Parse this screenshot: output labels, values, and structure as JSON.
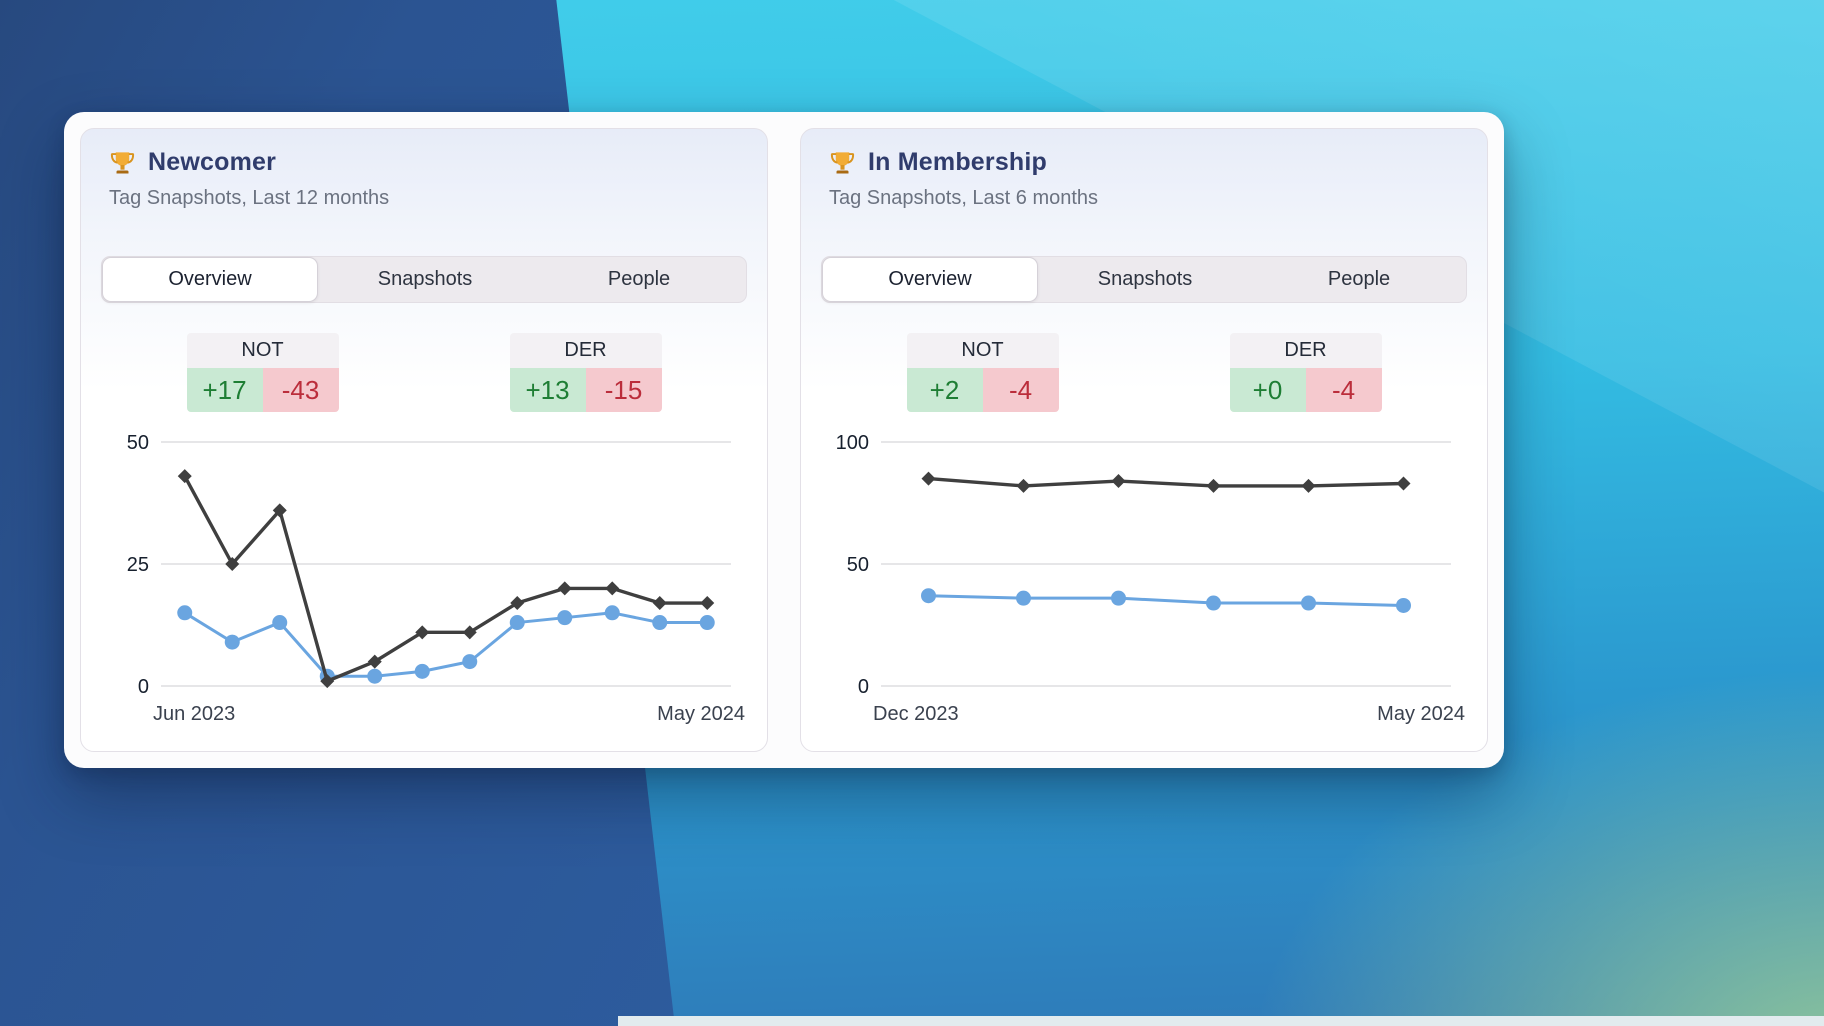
{
  "colors": {
    "title": "#303c6c",
    "positive_text": "#1e7e34",
    "positive_bg": "#c9e9d3",
    "negative_text": "#bb2d3b",
    "negative_bg": "#f5c9ce",
    "dark_series": "#3f3f3f",
    "blue_series": "#6aa5e0"
  },
  "cards": [
    {
      "icon": "trophy-icon",
      "title": "Newcomer",
      "subtitle": "Tag Snapshots, Last 12 months",
      "tabs": [
        "Overview",
        "Snapshots",
        "People"
      ],
      "active_tab": "Overview",
      "stats": [
        {
          "label": "NOT",
          "added": "+17",
          "removed": "-43"
        },
        {
          "label": "DER",
          "added": "+13",
          "removed": "-15"
        }
      ]
    },
    {
      "icon": "trophy-icon",
      "title": "In Membership",
      "subtitle": "Tag Snapshots, Last 6 months",
      "tabs": [
        "Overview",
        "Snapshots",
        "People"
      ],
      "active_tab": "Overview",
      "stats": [
        {
          "label": "NOT",
          "added": "+2",
          "removed": "-4"
        },
        {
          "label": "DER",
          "added": "+0",
          "removed": "-4"
        }
      ]
    }
  ],
  "chart_data": [
    {
      "type": "line",
      "grid": true,
      "x_axis": {
        "start_label": "Jun 2023",
        "end_label": "May 2024",
        "points": 12
      },
      "y_ticks": [
        0,
        25,
        50
      ],
      "ylim": [
        0,
        50
      ],
      "series": [
        {
          "id": "blue-line",
          "color": "#6aa5e0",
          "marker": "circle",
          "values": [
            15,
            9,
            13,
            2,
            2,
            3,
            5,
            13,
            14,
            15,
            13,
            13
          ]
        },
        {
          "id": "dark-line",
          "color": "#3f3f3f",
          "marker": "diamond",
          "values": [
            43,
            25,
            36,
            1,
            5,
            11,
            11,
            17,
            20,
            20,
            17,
            17
          ]
        }
      ]
    },
    {
      "type": "line",
      "grid": true,
      "x_axis": {
        "start_label": "Dec 2023",
        "end_label": "May 2024",
        "points": 6
      },
      "y_ticks": [
        0,
        50,
        100
      ],
      "ylim": [
        0,
        100
      ],
      "series": [
        {
          "id": "blue-line",
          "color": "#6aa5e0",
          "marker": "circle",
          "values": [
            37,
            36,
            36,
            34,
            34,
            33
          ]
        },
        {
          "id": "dark-line",
          "color": "#3f3f3f",
          "marker": "diamond",
          "values": [
            85,
            82,
            84,
            82,
            82,
            83
          ]
        }
      ]
    }
  ]
}
